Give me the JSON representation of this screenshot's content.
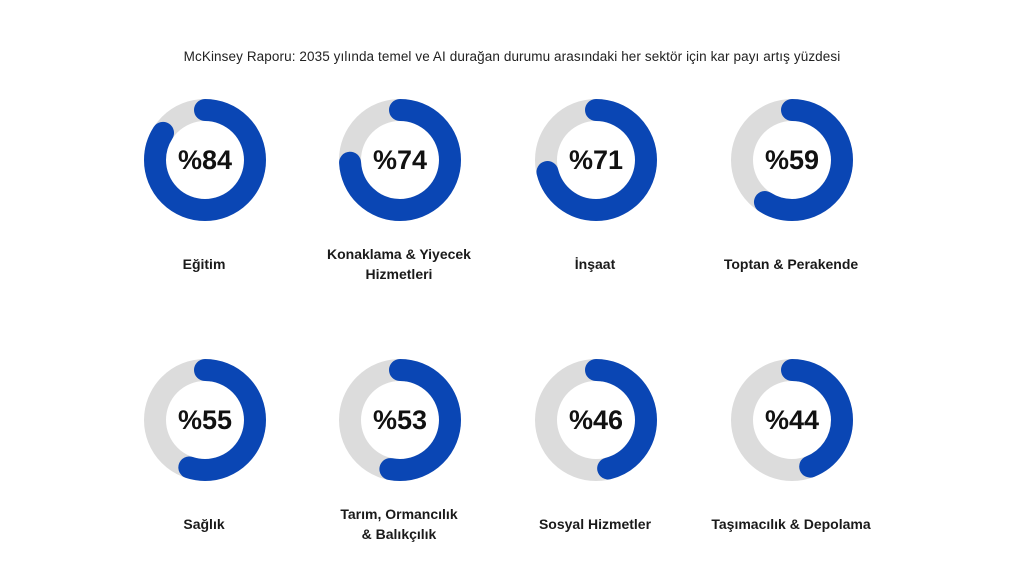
{
  "title": "McKinsey Raporu: 2035 yılında temel ve AI durağan durumu arasındaki her sektör için kar payı artış yüzdesi",
  "colors": {
    "accent": "#0a46b4",
    "track": "#dcdcdc"
  },
  "chart_data": {
    "type": "donut",
    "title": "McKinsey Raporu: 2035 yılında temel ve AI durağan durumu arasındaki her sektör için kar payı artış yüzdesi",
    "items": [
      {
        "category": "Eğitim",
        "label_lines": [
          "Eğitim"
        ],
        "value": 84,
        "value_text": "%84"
      },
      {
        "category": "Konaklama & Yiyecek Hizmetleri",
        "label_lines": [
          "Konaklama & Yiyecek",
          "Hizmetleri"
        ],
        "value": 74,
        "value_text": "%74"
      },
      {
        "category": "İnşaat",
        "label_lines": [
          "İnşaat"
        ],
        "value": 71,
        "value_text": "%71"
      },
      {
        "category": "Toptan & Perakende",
        "label_lines": [
          "Toptan & Perakende"
        ],
        "value": 59,
        "value_text": "%59"
      },
      {
        "category": "Sağlık",
        "label_lines": [
          "Sağlık"
        ],
        "value": 55,
        "value_text": "%55"
      },
      {
        "category": "Tarım, Ormancılık & Balıkçılık",
        "label_lines": [
          "Tarım, Ormancılık",
          "& Balıkçılık"
        ],
        "value": 53,
        "value_text": "%53"
      },
      {
        "category": "Sosyal Hizmetler",
        "label_lines": [
          "Sosyal Hizmetler"
        ],
        "value": 46,
        "value_text": "%46"
      },
      {
        "category": "Taşımacılık & Depolama",
        "label_lines": [
          "Taşımacılık & Depolama"
        ],
        "value": 44,
        "value_text": "%44"
      }
    ]
  }
}
